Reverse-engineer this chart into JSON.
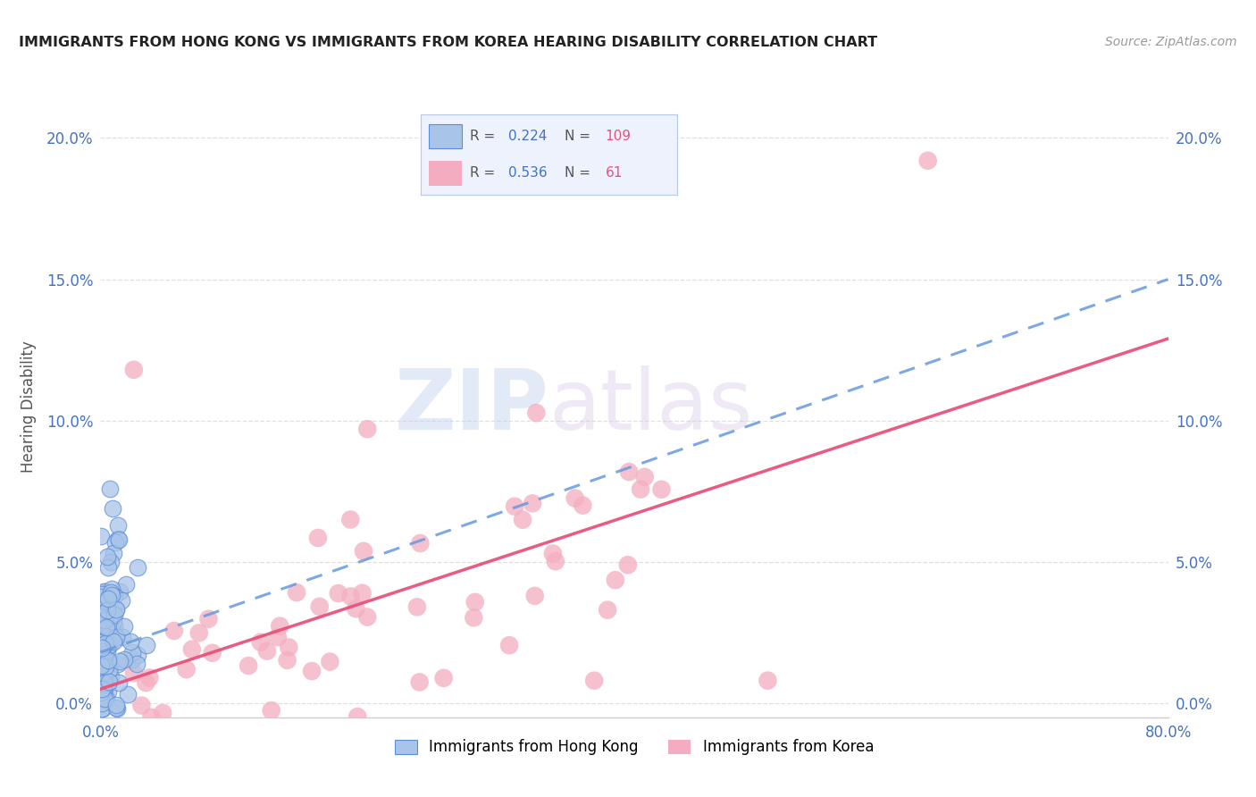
{
  "title": "IMMIGRANTS FROM HONG KONG VS IMMIGRANTS FROM KOREA HEARING DISABILITY CORRELATION CHART",
  "source": "Source: ZipAtlas.com",
  "ylabel": "Hearing Disability",
  "xlim": [
    0.0,
    0.8
  ],
  "ylim": [
    -0.005,
    0.215
  ],
  "yticks": [
    0.0,
    0.05,
    0.1,
    0.15,
    0.2
  ],
  "ytick_labels": [
    "0.0%",
    "5.0%",
    "10.0%",
    "15.0%",
    "20.0%"
  ],
  "xticks": [
    0.0,
    0.2,
    0.4,
    0.6,
    0.8
  ],
  "xtick_labels": [
    "0.0%",
    "",
    "",
    "",
    "80.0%"
  ],
  "hk_R": 0.224,
  "hk_N": 109,
  "korea_R": 0.536,
  "korea_N": 61,
  "hk_color": "#a8c4e8",
  "korea_color": "#f4adc0",
  "hk_edge_color": "#5b8dd9",
  "korea_edge_color": "none",
  "hk_line_color": "#6699dd",
  "korea_line_color": "#e8527a",
  "watermark": "ZIPatlas",
  "background_color": "#ffffff",
  "grid_color": "#e0e0e0",
  "tick_color": "#4472c4",
  "hk_line_intercept": 0.018,
  "hk_line_slope": 0.165,
  "korea_line_intercept": 0.005,
  "korea_line_slope": 0.155,
  "legend_label_hk": "Immigrants from Hong Kong",
  "legend_label_korea": "Immigrants from Korea"
}
